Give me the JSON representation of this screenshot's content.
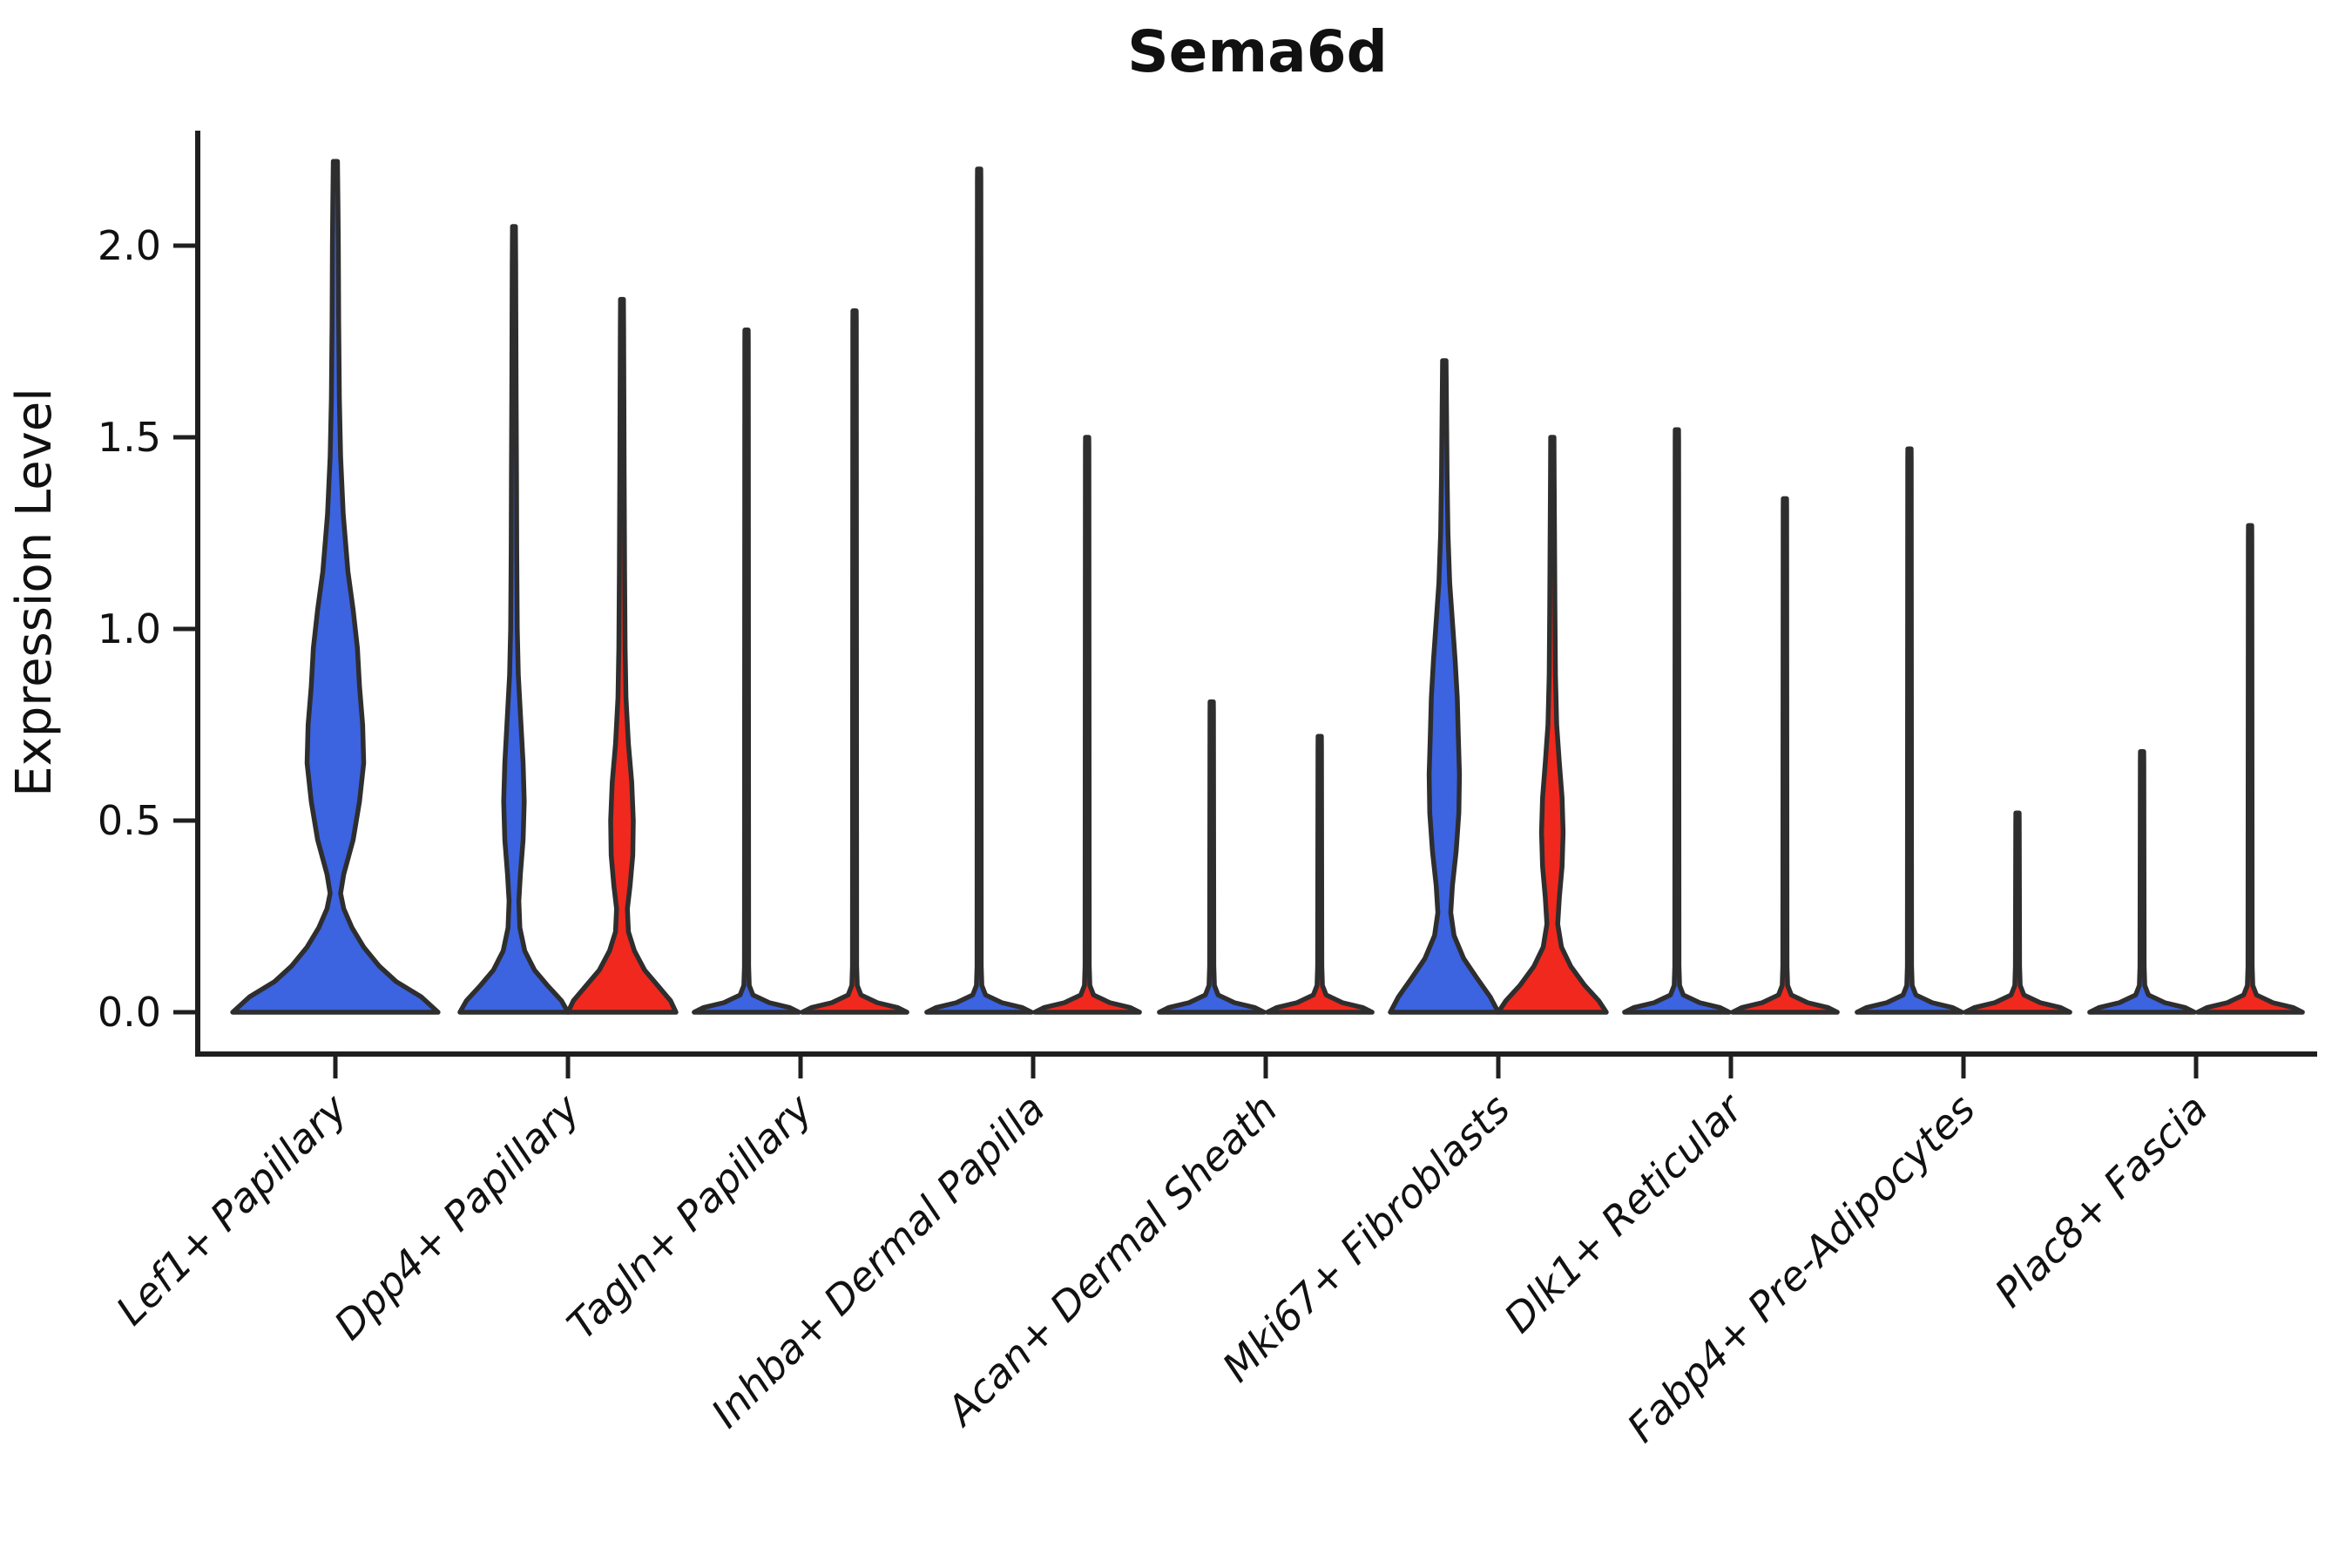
{
  "figure": {
    "background": "#ffffff"
  },
  "chart_data": {
    "type": "violin",
    "title": "Sema6d",
    "ylabel": "Expression Level",
    "xlabel": "",
    "ylim": [
      0,
      2.31
    ],
    "yticks": [
      0.0,
      0.5,
      1.0,
      1.5,
      2.0
    ],
    "ytick_labels": [
      "0.0",
      "0.5",
      "1.0",
      "1.5",
      "2.0"
    ],
    "grid": false,
    "legend": "none",
    "categories": [
      "Lef1+ Papillary",
      "Dpp4+ Papillary",
      "Tagln+ Papillary",
      "Inhba+ Dermal Papilla",
      "Acan+ Dermal Sheath",
      "Mki67+ Fibroblasts",
      "Dlk1+ Reticular",
      "Fabp4+ Pre-Adipocytes",
      "Plac8+ Fascia"
    ],
    "colors": {
      "blue": "#3C63E0",
      "red": "#F0281E",
      "outline": "#2E2E2E",
      "axis": "#1F1F1F"
    },
    "needle_profile_base": [
      [
        0,
        0.97
      ],
      [
        0.012,
        0.8
      ],
      [
        0.025,
        0.42
      ],
      [
        0.045,
        0.12
      ],
      [
        0.07,
        0.05
      ],
      [
        0.12,
        0.038
      ]
    ],
    "needle_spike_halfwidth": 0.03,
    "violins": [
      {
        "category": 0,
        "side": "center",
        "color": "blue",
        "width_scale": 1.94,
        "max_value": 2.22,
        "shape": "profile",
        "profile": [
          [
            0,
            0.98
          ],
          [
            0.04,
            0.82
          ],
          [
            0.08,
            0.58
          ],
          [
            0.12,
            0.42
          ],
          [
            0.17,
            0.27
          ],
          [
            0.22,
            0.16
          ],
          [
            0.27,
            0.08
          ],
          [
            0.31,
            0.05
          ],
          [
            0.36,
            0.08
          ],
          [
            0.45,
            0.17
          ],
          [
            0.55,
            0.23
          ],
          [
            0.65,
            0.27
          ],
          [
            0.75,
            0.26
          ],
          [
            0.85,
            0.23
          ],
          [
            0.95,
            0.21
          ],
          [
            1.05,
            0.17
          ],
          [
            1.15,
            0.12
          ],
          [
            1.3,
            0.075
          ],
          [
            1.45,
            0.05
          ],
          [
            1.6,
            0.038
          ],
          [
            1.8,
            0.032
          ],
          [
            2.0,
            0.028
          ],
          [
            2.1,
            0.025
          ],
          [
            2.18,
            0.022
          ],
          [
            2.22,
            0.02
          ]
        ]
      },
      {
        "category": 1,
        "side": "left",
        "color": "blue",
        "width_scale": 1.0,
        "max_value": 2.05,
        "shape": "profile",
        "profile": [
          [
            0,
            1.0
          ],
          [
            0.03,
            0.88
          ],
          [
            0.07,
            0.62
          ],
          [
            0.11,
            0.38
          ],
          [
            0.16,
            0.2
          ],
          [
            0.22,
            0.11
          ],
          [
            0.29,
            0.09
          ],
          [
            0.36,
            0.12
          ],
          [
            0.45,
            0.17
          ],
          [
            0.55,
            0.19
          ],
          [
            0.65,
            0.17
          ],
          [
            0.75,
            0.13
          ],
          [
            0.88,
            0.08
          ],
          [
            1.0,
            0.062
          ],
          [
            1.2,
            0.052
          ],
          [
            1.4,
            0.046
          ],
          [
            1.6,
            0.04
          ],
          [
            1.8,
            0.036
          ],
          [
            1.95,
            0.032
          ],
          [
            2.05,
            0.028
          ]
        ]
      },
      {
        "category": 1,
        "side": "right",
        "color": "red",
        "width_scale": 1.0,
        "max_value": 1.86,
        "shape": "profile",
        "profile": [
          [
            0,
            1.0
          ],
          [
            0.03,
            0.9
          ],
          [
            0.07,
            0.66
          ],
          [
            0.11,
            0.42
          ],
          [
            0.16,
            0.23
          ],
          [
            0.21,
            0.12
          ],
          [
            0.27,
            0.1
          ],
          [
            0.33,
            0.15
          ],
          [
            0.41,
            0.2
          ],
          [
            0.5,
            0.21
          ],
          [
            0.6,
            0.18
          ],
          [
            0.7,
            0.12
          ],
          [
            0.82,
            0.075
          ],
          [
            0.95,
            0.058
          ],
          [
            1.15,
            0.048
          ],
          [
            1.4,
            0.04
          ],
          [
            1.6,
            0.035
          ],
          [
            1.78,
            0.031
          ],
          [
            1.86,
            0.028
          ]
        ]
      },
      {
        "category": 2,
        "side": "left",
        "color": "blue",
        "width_scale": 1.0,
        "max_value": 1.78,
        "shape": "needle"
      },
      {
        "category": 2,
        "side": "right",
        "color": "red",
        "width_scale": 1.0,
        "max_value": 1.83,
        "shape": "needle"
      },
      {
        "category": 3,
        "side": "left",
        "color": "blue",
        "width_scale": 1.0,
        "max_value": 2.2,
        "shape": "needle"
      },
      {
        "category": 3,
        "side": "right",
        "color": "red",
        "width_scale": 1.0,
        "max_value": 1.5,
        "shape": "needle"
      },
      {
        "category": 4,
        "side": "left",
        "color": "blue",
        "width_scale": 1.0,
        "max_value": 0.81,
        "shape": "needle"
      },
      {
        "category": 4,
        "side": "right",
        "color": "red",
        "width_scale": 1.0,
        "max_value": 0.72,
        "shape": "needle"
      },
      {
        "category": 5,
        "side": "left",
        "color": "blue",
        "width_scale": 1.0,
        "max_value": 1.7,
        "shape": "profile",
        "profile": [
          [
            0,
            1.0
          ],
          [
            0.04,
            0.85
          ],
          [
            0.09,
            0.6
          ],
          [
            0.14,
            0.36
          ],
          [
            0.2,
            0.18
          ],
          [
            0.26,
            0.12
          ],
          [
            0.33,
            0.15
          ],
          [
            0.42,
            0.22
          ],
          [
            0.52,
            0.27
          ],
          [
            0.62,
            0.28
          ],
          [
            0.72,
            0.26
          ],
          [
            0.82,
            0.24
          ],
          [
            0.92,
            0.2
          ],
          [
            1.02,
            0.15
          ],
          [
            1.12,
            0.1
          ],
          [
            1.25,
            0.068
          ],
          [
            1.4,
            0.052
          ],
          [
            1.55,
            0.042
          ],
          [
            1.65,
            0.036
          ],
          [
            1.7,
            0.032
          ]
        ]
      },
      {
        "category": 5,
        "side": "right",
        "color": "red",
        "width_scale": 1.0,
        "max_value": 1.5,
        "shape": "profile",
        "profile": [
          [
            0,
            1.0
          ],
          [
            0.03,
            0.86
          ],
          [
            0.07,
            0.6
          ],
          [
            0.12,
            0.34
          ],
          [
            0.17,
            0.17
          ],
          [
            0.23,
            0.1
          ],
          [
            0.3,
            0.13
          ],
          [
            0.38,
            0.18
          ],
          [
            0.47,
            0.2
          ],
          [
            0.56,
            0.18
          ],
          [
            0.65,
            0.13
          ],
          [
            0.75,
            0.08
          ],
          [
            0.88,
            0.058
          ],
          [
            1.05,
            0.048
          ],
          [
            1.25,
            0.04
          ],
          [
            1.4,
            0.034
          ],
          [
            1.5,
            0.03
          ]
        ]
      },
      {
        "category": 6,
        "side": "left",
        "color": "blue",
        "width_scale": 1.0,
        "max_value": 1.52,
        "shape": "needle"
      },
      {
        "category": 6,
        "side": "right",
        "color": "red",
        "width_scale": 1.0,
        "max_value": 1.34,
        "shape": "needle"
      },
      {
        "category": 7,
        "side": "left",
        "color": "blue",
        "width_scale": 1.0,
        "max_value": 1.47,
        "shape": "needle"
      },
      {
        "category": 7,
        "side": "right",
        "color": "red",
        "width_scale": 1.0,
        "max_value": 0.52,
        "shape": "needle",
        "dots": [
          0.3,
          0.33,
          0.36,
          0.39,
          0.41,
          0.48
        ]
      },
      {
        "category": 8,
        "side": "left",
        "color": "blue",
        "width_scale": 1.0,
        "max_value": 0.68,
        "shape": "needle",
        "dots": [
          0.16,
          0.39,
          0.52
        ]
      },
      {
        "category": 8,
        "side": "right",
        "color": "red",
        "width_scale": 1.0,
        "max_value": 1.27,
        "shape": "needle"
      }
    ]
  }
}
